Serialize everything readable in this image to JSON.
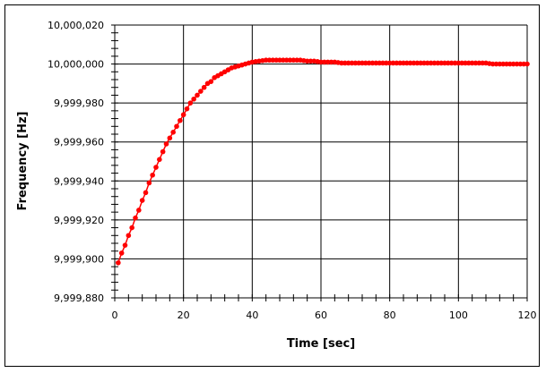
{
  "chart_data": {
    "type": "line",
    "title": "",
    "xlabel": "Time [sec]",
    "ylabel": "Frequency [Hz]",
    "xlim": [
      0,
      120
    ],
    "ylim": [
      9999880,
      10000020
    ],
    "x_ticks": [
      0,
      20,
      40,
      60,
      80,
      100,
      120
    ],
    "x_tick_labels": [
      "0",
      "20",
      "40",
      "60",
      "80",
      "100",
      "120"
    ],
    "y_ticks": [
      9999880,
      9999900,
      9999920,
      9999940,
      9999960,
      9999980,
      10000000,
      10000020
    ],
    "y_tick_labels": [
      "9,999,880",
      "9,999,900",
      "9,999,920",
      "9,999,940",
      "9,999,960",
      "9,999,980",
      "10,000,000",
      "10,000,020"
    ],
    "grid": true,
    "legend": null,
    "series": [
      {
        "name": "Frequency",
        "color": "#ff0000",
        "marker": "circle",
        "x": [
          1,
          2,
          3,
          4,
          5,
          6,
          7,
          8,
          9,
          10,
          11,
          12,
          13,
          14,
          15,
          16,
          17,
          18,
          19,
          20,
          21,
          22,
          23,
          24,
          25,
          26,
          27,
          28,
          29,
          30,
          31,
          32,
          33,
          34,
          35,
          36,
          37,
          38,
          39,
          40,
          42,
          44,
          46,
          48,
          50,
          52,
          54,
          56,
          58,
          60,
          62,
          64,
          66,
          68,
          70,
          75,
          80,
          85,
          90,
          95,
          100,
          105,
          108,
          110,
          115,
          120
        ],
        "y": [
          9999898,
          9999903,
          9999907,
          9999912,
          9999916,
          9999921,
          9999925,
          9999930,
          9999934,
          9999939,
          9999943,
          9999947,
          9999951,
          9999955,
          9999959,
          9999962,
          9999965,
          9999968,
          9999971,
          9999974,
          9999977,
          9999980,
          9999982,
          9999984,
          9999986,
          9999988,
          9999990,
          9999991,
          9999993,
          9999994,
          9999995,
          9999996,
          9999997,
          9999998,
          9999998.5,
          9999999,
          9999999.5,
          10000000,
          10000000.5,
          10000001,
          10000001.5,
          10000002,
          10000002,
          10000002,
          10000002,
          10000002,
          10000002,
          10000001.5,
          10000001.5,
          10000001,
          10000001,
          10000001,
          10000000.5,
          10000000.5,
          10000000.5,
          10000000.5,
          10000000.5,
          10000000.5,
          10000000.5,
          10000000.5,
          10000000.5,
          10000000.5,
          10000000.5,
          10000000,
          10000000,
          10000000
        ]
      }
    ]
  }
}
